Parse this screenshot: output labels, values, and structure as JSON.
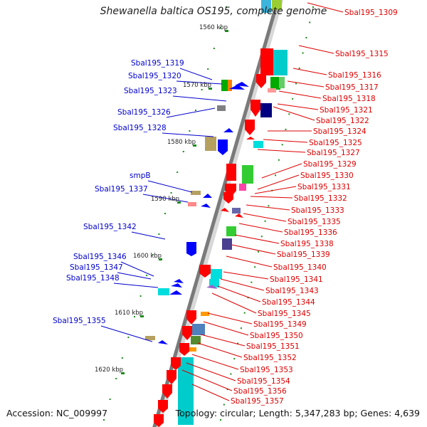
{
  "title": "Shewanella baltica OS195, complete genome",
  "footer": {
    "accession": "Accession: NC_009997",
    "summary": "Topology: circular; Length: 5,347,283 bp; Genes: 4,639"
  },
  "colors": {
    "left_label": "#0000cc",
    "right_label": "#dd0000",
    "backbone": "#808080",
    "tick": "#1a8c1a"
  },
  "kbp_ticks": [
    "1560 kbp",
    "1570 kbp",
    "1580 kbp",
    "1590 kbp",
    "1600 kbp",
    "1610 kbp",
    "1620 kbp"
  ],
  "left_labels": [
    "Sbal195_1319",
    "Sbal195_1320",
    "Sbal195_1323",
    "Sbal195_1326",
    "Sbal195_1328",
    "smpB",
    "Sbal195_1337",
    "Sbal195_1342",
    "Sbal195_1346",
    "Sbal195_1347",
    "Sbal195_1348",
    "Sbal195_1355"
  ],
  "right_labels": [
    "Sbal195_1309",
    "Sbal195_1315",
    "Sbal195_1316",
    "Sbal195_1317",
    "Sbal195_1318",
    "Sbal195_1321",
    "Sbal195_1322",
    "Sbal195_1324",
    "Sbal195_1325",
    "Sbal195_1327",
    "Sbal195_1329",
    "Sbal195_1330",
    "Sbal195_1331",
    "Sbal195_1332",
    "Sbal195_1333",
    "Sbal195_1335",
    "Sbal195_1336",
    "Sbal195_1338",
    "Sbal195_1339",
    "Sbal195_1340",
    "Sbal195_1341",
    "Sbal195_1343",
    "Sbal195_1344",
    "Sbal195_1345",
    "Sbal195_1349",
    "Sbal195_1350",
    "Sbal195_1351",
    "Sbal195_1352",
    "Sbal195_1353",
    "Sbal195_1354",
    "Sbal195_1356",
    "Sbal195_1357"
  ]
}
